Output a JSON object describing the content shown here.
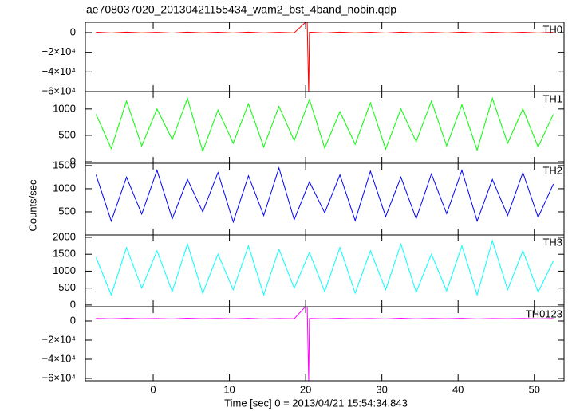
{
  "title": "ae708037020_20130421155434_wam2_bst_4band_nobin.qdp",
  "xlabel": "Time [sec] 0 = 2013/04/21 15:54:34.843",
  "ylabel": "Counts/sec",
  "xlim": [
    -8.9,
    53.9
  ],
  "xticks": [
    0,
    10,
    20,
    30,
    40,
    50
  ],
  "chart_data": [
    {
      "type": "line",
      "label": "TH0",
      "color": "#ff0000",
      "ylim": [
        -60000,
        10500
      ],
      "yticks": [
        0,
        {
          "value": -20000,
          "label": "−2×10⁴"
        },
        {
          "value": -40000,
          "label": "−4×10⁴"
        },
        {
          "value": -60000,
          "label": "−6×10⁴"
        }
      ],
      "x": [
        -7.5,
        -5.5,
        -3.5,
        -1.5,
        0.5,
        2.5,
        4.5,
        6.5,
        8.5,
        10.5,
        12.5,
        14.5,
        16.5,
        18.5,
        20.2,
        20.4,
        20.5,
        22.5,
        24.5,
        26.5,
        28.5,
        30.5,
        32.5,
        34.5,
        36.5,
        38.5,
        40.5,
        42.5,
        44.5,
        46.5,
        48.5,
        50.5,
        52.5
      ],
      "values": [
        400,
        -300,
        500,
        -200,
        300,
        -400,
        450,
        -250,
        350,
        -300,
        500,
        -350,
        300,
        -200,
        12000,
        -62000,
        400,
        -300,
        450,
        -250,
        350,
        -400,
        500,
        -200,
        300,
        -350,
        450,
        -300,
        400,
        -250,
        350,
        -300,
        400
      ]
    },
    {
      "type": "line",
      "label": "TH1",
      "color": "#00ff00",
      "ylim": [
        -30,
        1330
      ],
      "yticks": [
        0,
        500,
        1000
      ],
      "x": [
        -7.5,
        -5.5,
        -3.5,
        -1.5,
        0.5,
        2.5,
        4.5,
        6.5,
        8.5,
        10.5,
        12.5,
        14.5,
        16.5,
        18.5,
        20.5,
        22.5,
        24.5,
        26.5,
        28.5,
        30.5,
        32.5,
        34.5,
        36.5,
        38.5,
        40.5,
        42.5,
        44.5,
        46.5,
        48.5,
        50.5,
        52.5
      ],
      "values": [
        900,
        250,
        1150,
        300,
        1000,
        420,
        1200,
        200,
        980,
        350,
        1100,
        280,
        1050,
        400,
        1180,
        260,
        950,
        330,
        1120,
        240,
        1000,
        380,
        1150,
        300,
        1080,
        220,
        1200,
        350,
        1000,
        280,
        900
      ]
    },
    {
      "type": "line",
      "label": "TH2",
      "color": "#0000ff",
      "ylim": [
        0,
        1550
      ],
      "yticks": [
        500,
        1000,
        1500
      ],
      "x": [
        -7.5,
        -5.5,
        -3.5,
        -1.5,
        0.5,
        2.5,
        4.5,
        6.5,
        8.5,
        10.5,
        12.5,
        14.5,
        16.5,
        18.5,
        20.5,
        22.5,
        24.5,
        26.5,
        28.5,
        30.5,
        32.5,
        34.5,
        36.5,
        38.5,
        40.5,
        42.5,
        44.5,
        46.5,
        48.5,
        50.5,
        52.5
      ],
      "values": [
        1300,
        300,
        1250,
        450,
        1400,
        350,
        1200,
        500,
        1350,
        280,
        1280,
        420,
        1450,
        330,
        1150,
        480,
        1300,
        310,
        1380,
        400,
        1250,
        350,
        1320,
        460,
        1400,
        300,
        1200,
        420,
        1350,
        380,
        1100
      ]
    },
    {
      "type": "line",
      "label": "TH3",
      "color": "#00ffff",
      "ylim": [
        -50,
        2070
      ],
      "yticks": [
        0,
        500,
        1000,
        1500,
        2000
      ],
      "x": [
        -7.5,
        -5.5,
        -3.5,
        -1.5,
        0.5,
        2.5,
        4.5,
        6.5,
        8.5,
        10.5,
        12.5,
        14.5,
        16.5,
        18.5,
        20.5,
        22.5,
        24.5,
        26.5,
        28.5,
        30.5,
        32.5,
        34.5,
        36.5,
        38.5,
        40.5,
        42.5,
        44.5,
        46.5,
        48.5,
        50.5,
        52.5
      ],
      "values": [
        1400,
        300,
        1700,
        500,
        1600,
        400,
        1800,
        350,
        1500,
        450,
        1750,
        300,
        1650,
        500,
        1550,
        400,
        1700,
        350,
        1600,
        450,
        1800,
        380,
        1500,
        420,
        1750,
        300,
        1900,
        450,
        1600,
        380,
        1300
      ]
    },
    {
      "type": "line",
      "label": "TH0123",
      "color": "#ff00ff",
      "ylim": [
        -62500,
        15000
      ],
      "yticks": [
        0,
        {
          "value": -20000,
          "label": "−2×10⁴"
        },
        {
          "value": -40000,
          "label": "−4×10⁴"
        },
        {
          "value": -60000,
          "label": "−6×10⁴"
        }
      ],
      "x": [
        -7.5,
        -5.5,
        -3.5,
        -1.5,
        0.5,
        2.5,
        4.5,
        6.5,
        8.5,
        10.5,
        12.5,
        14.5,
        16.5,
        18.5,
        20.2,
        20.4,
        20.5,
        22.5,
        24.5,
        26.5,
        28.5,
        30.5,
        32.5,
        34.5,
        36.5,
        38.5,
        40.5,
        42.5,
        44.5,
        46.5,
        48.5,
        50.5,
        52.5
      ],
      "values": [
        2700,
        2300,
        2800,
        2400,
        2600,
        2200,
        2900,
        2400,
        2700,
        2300,
        2800,
        2200,
        2600,
        2400,
        17000,
        -63000,
        2700,
        2300,
        2800,
        2400,
        2600,
        2200,
        2900,
        2300,
        2700,
        2400,
        2800,
        2200,
        2600,
        2400,
        2700,
        2300,
        2600
      ]
    }
  ]
}
